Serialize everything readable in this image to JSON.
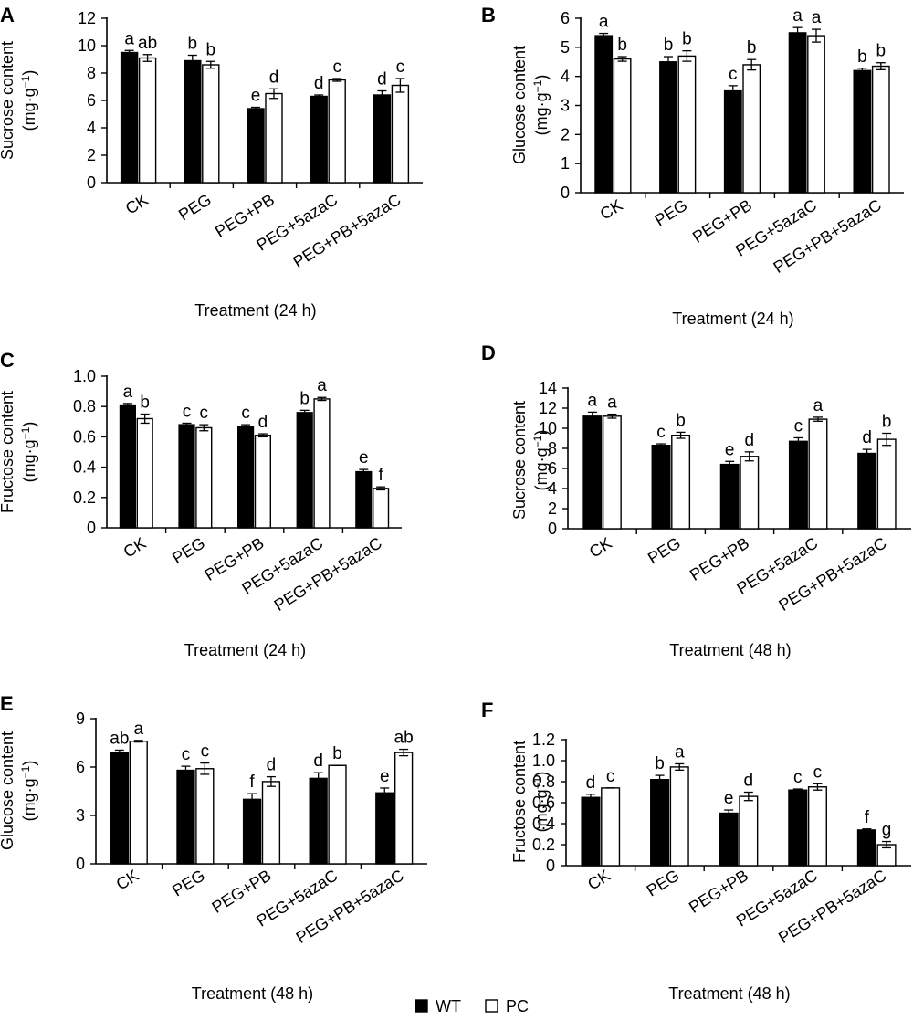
{
  "chart_data": [
    {
      "type": "bar",
      "panel": "A",
      "ylabel": "Sucrose content",
      "yunit": "(mg·g",
      "yunit_sup": "−1",
      "yunit_close": ")",
      "xlabel": "Treatment (24 h)",
      "ylim": [
        0,
        12
      ],
      "yticks": [
        0,
        2,
        4,
        6,
        8,
        10,
        12
      ],
      "categories": [
        "CK",
        "PEG",
        "PEG+PB",
        "PEG+5azaC",
        "PEG+PB+5azaC"
      ],
      "series": [
        {
          "name": "WT",
          "values": [
            9.5,
            8.9,
            5.4,
            6.3,
            6.4
          ],
          "errors": [
            0.15,
            0.4,
            0.1,
            0.1,
            0.3
          ],
          "labels": [
            "a",
            "b",
            "e",
            "d",
            "d"
          ]
        },
        {
          "name": "PC",
          "values": [
            9.1,
            8.6,
            6.5,
            7.5,
            7.1
          ],
          "errors": [
            0.25,
            0.25,
            0.35,
            0.1,
            0.5
          ],
          "labels": [
            "ab",
            "b",
            "d",
            "c",
            "c"
          ]
        }
      ]
    },
    {
      "type": "bar",
      "panel": "B",
      "ylabel": "Glucose content",
      "yunit": "(mg·g",
      "yunit_sup": "−1",
      "yunit_close": ")",
      "xlabel": "Treatment (24 h)",
      "ylim": [
        0,
        6
      ],
      "yticks": [
        0,
        1,
        2,
        3,
        4,
        5,
        6
      ],
      "categories": [
        "CK",
        "PEG",
        "PEG+PB",
        "PEG+5azaC",
        "PEG+PB+5azaC"
      ],
      "series": [
        {
          "name": "WT",
          "values": [
            5.4,
            4.5,
            3.5,
            5.5,
            4.2
          ],
          "errors": [
            0.08,
            0.18,
            0.18,
            0.18,
            0.08
          ],
          "labels": [
            "a",
            "b",
            "c",
            "a",
            "b"
          ]
        },
        {
          "name": "PC",
          "values": [
            4.6,
            4.7,
            4.4,
            5.4,
            4.35
          ],
          "errors": [
            0.08,
            0.18,
            0.18,
            0.22,
            0.12
          ],
          "labels": [
            "b",
            "b",
            "b",
            "a",
            "b"
          ]
        }
      ]
    },
    {
      "type": "bar",
      "panel": "C",
      "ylabel": "Fructose content",
      "yunit": "(mg·g",
      "yunit_sup": "−1",
      "yunit_close": ")",
      "xlabel": "Treatment (24 h)",
      "ylim": [
        0,
        1.0
      ],
      "yticks": [
        "0",
        "0.2",
        "0.4",
        "0.6",
        "0.8",
        "1.0"
      ],
      "categories": [
        "CK",
        "PEG",
        "PEG+PB",
        "PEG+5azaC",
        "PEG+PB+5azaC"
      ],
      "series": [
        {
          "name": "WT",
          "values": [
            0.81,
            0.68,
            0.67,
            0.76,
            0.37
          ],
          "errors": [
            0.01,
            0.01,
            0.01,
            0.015,
            0.015
          ],
          "labels": [
            "a",
            "c",
            "c",
            "b",
            "e"
          ]
        },
        {
          "name": "PC",
          "values": [
            0.72,
            0.66,
            0.61,
            0.85,
            0.26
          ],
          "errors": [
            0.03,
            0.02,
            0.01,
            0.01,
            0.01
          ],
          "labels": [
            "b",
            "c",
            "d",
            "a",
            "f"
          ]
        }
      ]
    },
    {
      "type": "bar",
      "panel": "D",
      "ylabel": "Sucrose content",
      "yunit": "(mg·g",
      "yunit_sup": "−1",
      "yunit_close": ")",
      "xlabel": "Treatment (48 h)",
      "ylim": [
        0,
        14
      ],
      "yticks": [
        0,
        2,
        4,
        6,
        8,
        10,
        12,
        14
      ],
      "categories": [
        "CK",
        "PEG",
        "PEG+PB",
        "PEG+5azaC",
        "PEG+PB+5azaC"
      ],
      "series": [
        {
          "name": "WT",
          "values": [
            11.2,
            8.3,
            6.4,
            8.7,
            7.5
          ],
          "errors": [
            0.4,
            0.15,
            0.3,
            0.35,
            0.4
          ],
          "labels": [
            "a",
            "c",
            "e",
            "c",
            "d"
          ]
        },
        {
          "name": "PC",
          "values": [
            11.2,
            9.3,
            7.2,
            10.9,
            8.9
          ],
          "errors": [
            0.2,
            0.3,
            0.45,
            0.2,
            0.6
          ],
          "labels": [
            "a",
            "b",
            "d",
            "a",
            "b"
          ]
        }
      ]
    },
    {
      "type": "bar",
      "panel": "E",
      "ylabel": "Glucose content",
      "yunit": "(mg·g",
      "yunit_sup": "−1",
      "yunit_close": ")",
      "xlabel": "Treatment (48 h)",
      "ylim": [
        0,
        9
      ],
      "yticks": [
        0,
        3,
        6,
        9
      ],
      "categories": [
        "CK",
        "PEG",
        "PEG+PB",
        "PEG+5azaC",
        "PEG+PB+5azaC"
      ],
      "series": [
        {
          "name": "WT",
          "values": [
            6.9,
            5.8,
            4.0,
            5.3,
            4.4
          ],
          "errors": [
            0.15,
            0.25,
            0.35,
            0.35,
            0.3
          ],
          "labels": [
            "ab",
            "c",
            "f",
            "d",
            "e"
          ]
        },
        {
          "name": "PC",
          "values": [
            7.6,
            5.9,
            5.1,
            6.1,
            6.9
          ],
          "errors": [
            0.05,
            0.35,
            0.3,
            0.0,
            0.2
          ],
          "labels": [
            "a",
            "c",
            "d",
            "b",
            "ab"
          ]
        }
      ]
    },
    {
      "type": "bar",
      "panel": "F",
      "ylabel": "Fructose content",
      "yunit": "(mg·g",
      "yunit_sup": "−1",
      "yunit_close": ")",
      "xlabel": "Treatment (48 h)",
      "ylim": [
        0,
        1.2
      ],
      "yticks": [
        "0",
        "0.2",
        "0.4",
        "0.6",
        "0.8",
        "1.0",
        "1.2"
      ],
      "categories": [
        "CK",
        "PEG",
        "PEG+PB",
        "PEG+5azaC",
        "PEG+PB+5azaC"
      ],
      "series": [
        {
          "name": "WT",
          "values": [
            0.65,
            0.82,
            0.5,
            0.72,
            0.34
          ],
          "errors": [
            0.03,
            0.04,
            0.03,
            0.01,
            0.01
          ],
          "labels": [
            "d",
            "b",
            "e",
            "c",
            "f"
          ]
        },
        {
          "name": "PC",
          "values": [
            0.74,
            0.94,
            0.66,
            0.75,
            0.2
          ],
          "errors": [
            0.0,
            0.03,
            0.04,
            0.03,
            0.03
          ],
          "labels": [
            "c",
            "a",
            "d",
            "c",
            "g"
          ]
        }
      ]
    }
  ],
  "legend": [
    {
      "name": "WT",
      "color": "#000000"
    },
    {
      "name": "PC",
      "color": "#ffffff"
    }
  ],
  "colors": {
    "wt_fill": "#000000",
    "pc_fill": "#ffffff",
    "stroke": "#000000"
  }
}
